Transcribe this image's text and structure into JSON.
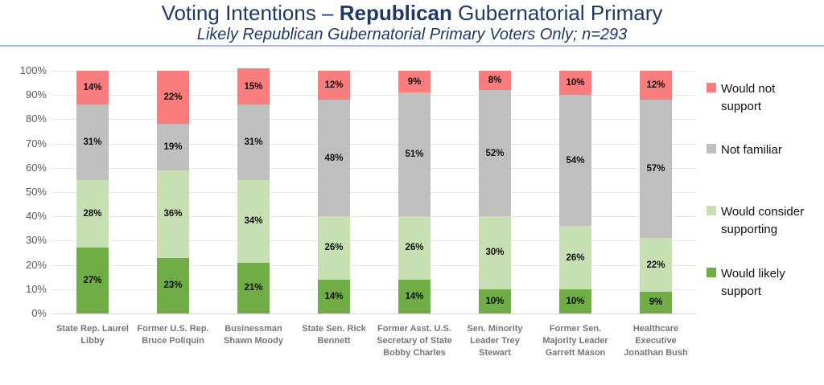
{
  "header": {
    "title_prefix": "Voting Intentions – ",
    "title_bold": "Republican",
    "title_suffix": " Gubernatorial Primary",
    "subtitle": "Likely Republican Gubernatorial Primary Voters Only; n=293"
  },
  "colors": {
    "title_text": "#1F3864",
    "separator": "#A9BCDB",
    "would_likely_support": "#70AD47",
    "would_consider_supporting": "#C6E0B4",
    "not_familiar": "#BFBFBF",
    "would_not_support": "#F97D7D",
    "gridline": "#E8E8E8",
    "axis_text": "#595959",
    "category_text": "#767676"
  },
  "chart_data": {
    "type": "bar",
    "stacked": true,
    "title": "Voting Intentions – Republican Gubernatorial Primary",
    "subtitle": "Likely Republican Gubernatorial Primary Voters Only; n=293",
    "xlabel": "",
    "ylabel": "",
    "ylim": [
      0,
      100
    ],
    "y_tick_step": 10,
    "y_tick_labels": [
      "0%",
      "10%",
      "20%",
      "30%",
      "40%",
      "50%",
      "60%",
      "70%",
      "80%",
      "90%",
      "100%"
    ],
    "grid": true,
    "legend_position": "right",
    "categories": [
      "State Rep. Laurel Libby",
      "Former U.S. Rep. Bruce Poliquin",
      "Businessman Shawn Moody",
      "State Sen. Rick Bennett",
      "Former Asst. U.S. Secretary of State Bobby Charles",
      "Sen. Minority Leader Trey Stewart",
      "Former Sen. Majority Leader Garrett Mason",
      "Healthcare Executive Jonathan Bush"
    ],
    "series": [
      {
        "name": "Would likely support",
        "color": "#70AD47",
        "values": [
          27,
          23,
          21,
          14,
          14,
          10,
          10,
          9
        ]
      },
      {
        "name": "Would consider supporting",
        "color": "#C6E0B4",
        "values": [
          28,
          36,
          34,
          26,
          26,
          30,
          26,
          22
        ]
      },
      {
        "name": "Not familiar",
        "color": "#BFBFBF",
        "values": [
          31,
          19,
          31,
          48,
          51,
          52,
          54,
          57
        ]
      },
      {
        "name": "Would not support",
        "color": "#F97D7D",
        "values": [
          14,
          22,
          15,
          12,
          9,
          8,
          10,
          12
        ]
      }
    ],
    "data_label_format": "percent"
  },
  "legend": {
    "items": [
      {
        "label": "Would not support",
        "color": "#F97D7D"
      },
      {
        "label": "Not familiar",
        "color": "#BFBFBF"
      },
      {
        "label": "Would consider supporting",
        "color": "#C6E0B4"
      },
      {
        "label": "Would likely support",
        "color": "#70AD47"
      }
    ]
  }
}
